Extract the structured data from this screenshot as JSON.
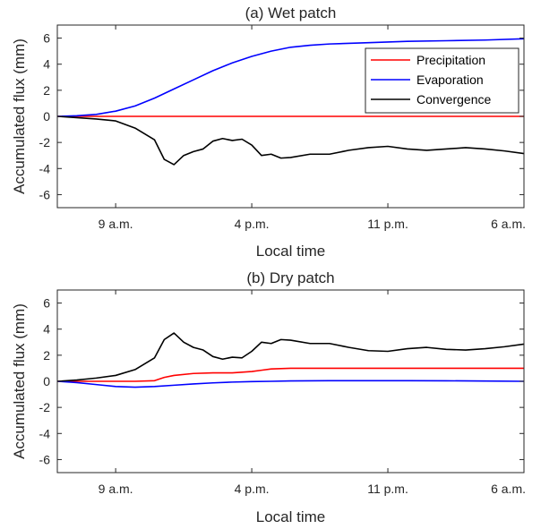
{
  "chart_data": [
    {
      "type": "line",
      "title": "(a) Wet patch",
      "xlabel": "Local time",
      "ylabel": "Accumulated flux (mm)",
      "ylim": [
        -7,
        7
      ],
      "yticks": [
        -6,
        -4,
        -2,
        0,
        2,
        4,
        6
      ],
      "xlim": [
        6,
        30
      ],
      "xticks": [
        9,
        16,
        23,
        30
      ],
      "xtick_labels": [
        "9 a.m.",
        "4 p.m.",
        "11 p.m.",
        "6 a.m."
      ],
      "legend": {
        "placement": "top-right",
        "entries": [
          "Precipitation",
          "Evaporation",
          "Convergence"
        ]
      },
      "grid": false,
      "series": [
        {
          "name": "Precipitation",
          "color": "#ff0000",
          "x": [
            6,
            30
          ],
          "y": [
            0,
            0
          ]
        },
        {
          "name": "Evaporation",
          "color": "#0000ff",
          "x": [
            6,
            7,
            8,
            9,
            10,
            11,
            12,
            13,
            14,
            15,
            16,
            17,
            18,
            19,
            20,
            22,
            24,
            26,
            28,
            30
          ],
          "y": [
            0,
            0.05,
            0.15,
            0.4,
            0.8,
            1.4,
            2.1,
            2.8,
            3.5,
            4.1,
            4.6,
            5.0,
            5.3,
            5.45,
            5.55,
            5.65,
            5.75,
            5.8,
            5.85,
            5.95
          ]
        },
        {
          "name": "Convergence",
          "color": "#000000",
          "x": [
            6,
            7,
            8,
            9,
            10,
            11,
            11.5,
            12,
            12.5,
            13,
            13.5,
            14,
            14.5,
            15,
            15.5,
            16,
            16.5,
            17,
            17.5,
            18,
            19,
            20,
            21,
            22,
            23,
            24,
            25,
            26,
            27,
            28,
            29,
            30
          ],
          "y": [
            0,
            -0.1,
            -0.2,
            -0.35,
            -0.9,
            -1.8,
            -3.3,
            -3.7,
            -3.0,
            -2.7,
            -2.5,
            -1.9,
            -1.7,
            -1.85,
            -1.75,
            -2.2,
            -3.0,
            -2.9,
            -3.2,
            -3.15,
            -2.9,
            -2.9,
            -2.6,
            -2.4,
            -2.3,
            -2.5,
            -2.6,
            -2.5,
            -2.4,
            -2.5,
            -2.65,
            -2.85
          ]
        }
      ]
    },
    {
      "type": "line",
      "title": "(b) Dry patch",
      "xlabel": "Local time",
      "ylabel": "Accumulated flux (mm)",
      "ylim": [
        -7,
        7
      ],
      "yticks": [
        -6,
        -4,
        -2,
        0,
        2,
        4,
        6
      ],
      "xlim": [
        6,
        30
      ],
      "xticks": [
        9,
        16,
        23,
        30
      ],
      "xtick_labels": [
        "9 a.m.",
        "4 p.m.",
        "11 p.m.",
        "6 a.m."
      ],
      "grid": false,
      "series": [
        {
          "name": "Precipitation",
          "color": "#ff0000",
          "x": [
            6,
            8,
            10,
            11,
            11.5,
            12,
            13,
            14,
            15,
            15.5,
            16,
            16.5,
            17,
            18,
            20,
            24,
            28,
            30
          ],
          "y": [
            0,
            0,
            0,
            0.05,
            0.3,
            0.45,
            0.6,
            0.65,
            0.65,
            0.7,
            0.75,
            0.85,
            0.95,
            1.0,
            1.0,
            1.0,
            1.0,
            1.0
          ]
        },
        {
          "name": "Evaporation",
          "color": "#0000ff",
          "x": [
            6,
            7,
            8,
            9,
            10,
            11,
            12,
            13,
            14,
            15,
            16,
            17,
            18,
            20,
            22,
            24,
            26,
            28,
            30
          ],
          "y": [
            0,
            -0.1,
            -0.25,
            -0.4,
            -0.45,
            -0.4,
            -0.3,
            -0.2,
            -0.12,
            -0.06,
            -0.02,
            0.0,
            0.03,
            0.05,
            0.05,
            0.05,
            0.04,
            0.02,
            0.0
          ]
        },
        {
          "name": "Convergence",
          "color": "#000000",
          "x": [
            6,
            7,
            8,
            9,
            10,
            11,
            11.5,
            12,
            12.5,
            13,
            13.5,
            14,
            14.5,
            15,
            15.5,
            16,
            16.5,
            17,
            17.5,
            18,
            19,
            20,
            21,
            22,
            23,
            24,
            25,
            26,
            27,
            28,
            29,
            30
          ],
          "y": [
            0,
            0.1,
            0.25,
            0.45,
            0.9,
            1.8,
            3.2,
            3.7,
            3.0,
            2.6,
            2.4,
            1.9,
            1.7,
            1.85,
            1.8,
            2.3,
            3.0,
            2.9,
            3.2,
            3.15,
            2.9,
            2.9,
            2.6,
            2.35,
            2.3,
            2.5,
            2.6,
            2.45,
            2.4,
            2.5,
            2.65,
            2.85
          ]
        }
      ]
    }
  ]
}
